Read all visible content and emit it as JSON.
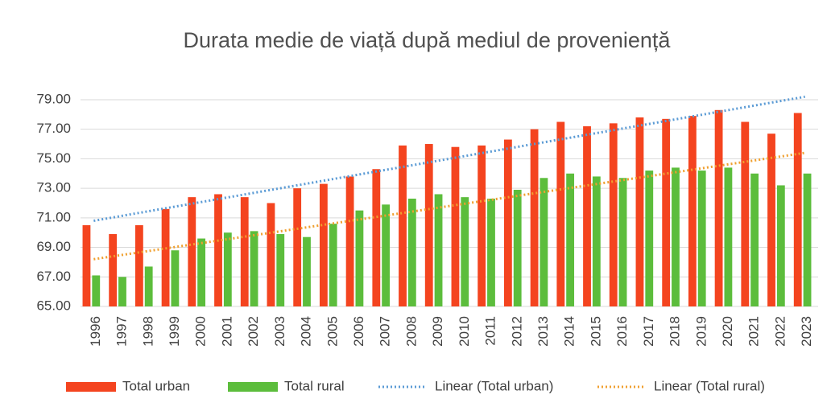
{
  "chart_data": {
    "type": "bar",
    "title": "Durata medie de viață după mediul de proveniență",
    "categories": [
      "1996",
      "1997",
      "1998",
      "1999",
      "2000",
      "2001",
      "2002",
      "2003",
      "2004",
      "2005",
      "2006",
      "2007",
      "2008",
      "2009",
      "2010",
      "2011",
      "2012",
      "2013",
      "2014",
      "2015",
      "2016",
      "2017",
      "2018",
      "2019",
      "2020",
      "2021",
      "2022",
      "2023"
    ],
    "series": [
      {
        "name": "Total urban",
        "color": "#f4441f",
        "values": [
          70.5,
          69.9,
          70.5,
          71.6,
          72.4,
          72.6,
          72.4,
          72.0,
          73.0,
          73.3,
          73.8,
          74.3,
          75.9,
          76.0,
          75.8,
          75.9,
          76.3,
          77.0,
          77.5,
          77.2,
          77.4,
          77.8,
          77.7,
          77.9,
          78.3,
          77.5,
          76.7,
          78.1
        ]
      },
      {
        "name": "Total rural",
        "color": "#5cbd3c",
        "values": [
          67.1,
          67.0,
          67.7,
          68.8,
          69.6,
          70.0,
          70.1,
          69.9,
          69.7,
          70.6,
          71.5,
          71.9,
          72.3,
          72.6,
          72.4,
          72.3,
          72.9,
          73.7,
          74.0,
          73.8,
          73.7,
          74.2,
          74.4,
          74.2,
          74.4,
          74.0,
          73.2,
          74.0
        ]
      }
    ],
    "trendlines": [
      {
        "name": "Linear (Total urban)",
        "color": "#5b9bd5",
        "x": [
          "1996",
          "2023"
        ],
        "values": [
          70.8,
          79.2
        ]
      },
      {
        "name": "Linear (Total rural)",
        "color": "#f0a030",
        "x": [
          "1996",
          "2023"
        ],
        "values": [
          68.2,
          75.4
        ]
      }
    ],
    "ylim": [
      65,
      80
    ],
    "yticks": [
      {
        "value": 65,
        "label": "65.00"
      },
      {
        "value": 67,
        "label": "67.00"
      },
      {
        "value": 69,
        "label": "69.00"
      },
      {
        "value": 71,
        "label": "71.00"
      },
      {
        "value": 73,
        "label": "73.00"
      },
      {
        "value": 75,
        "label": "75.00"
      },
      {
        "value": 77,
        "label": "77.00"
      },
      {
        "value": 79,
        "label": "79.00"
      }
    ],
    "grid": true
  }
}
